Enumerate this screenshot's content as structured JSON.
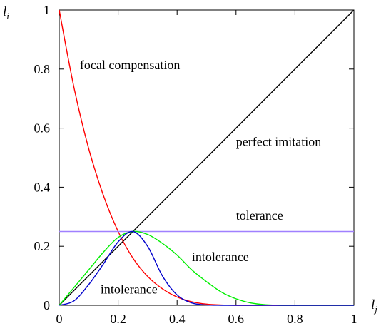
{
  "chart_data": {
    "type": "line",
    "xlabel": "l_j",
    "ylabel": "l_i",
    "xlim": [
      0,
      1
    ],
    "ylim": [
      0,
      1
    ],
    "x_ticks": [
      "0",
      "0.2",
      "0.4",
      "0.6",
      "0.8",
      "1"
    ],
    "y_ticks": [
      "0",
      "0.2",
      "0.4",
      "0.6",
      "0.8",
      "1"
    ],
    "grid": false,
    "series": [
      {
        "name": "perfect imitation",
        "color": "#000000",
        "x": [
          0,
          1
        ],
        "y": [
          0,
          1
        ]
      },
      {
        "name": "focal compensation",
        "color": "#ff0000",
        "x": [
          0,
          0.05,
          0.1,
          0.15,
          0.2,
          0.25,
          0.3,
          0.35,
          0.4,
          0.45,
          0.5,
          0.55,
          0.6,
          0.65,
          0.7,
          0.75,
          0.8,
          0.85,
          0.9,
          0.95,
          1
        ],
        "y": [
          1,
          0.738,
          0.531,
          0.372,
          0.25,
          0.16,
          0.098,
          0.056,
          0.028,
          0.012,
          0.004,
          0.001,
          0,
          0,
          0,
          0,
          0,
          0,
          0,
          0,
          0
        ]
      },
      {
        "name": "tolerance",
        "color": "#a080ff",
        "x": [
          0,
          1
        ],
        "y": [
          0.25,
          0.25
        ]
      },
      {
        "name": "intolerance",
        "color": "#00ee00",
        "x": [
          0,
          0.05,
          0.1,
          0.15,
          0.2,
          0.25,
          0.3,
          0.35,
          0.4,
          0.45,
          0.5,
          0.55,
          0.6,
          0.65,
          0.7,
          0.75,
          0.8,
          0.85,
          0.9,
          0.95,
          1
        ],
        "y": [
          0,
          0.06,
          0.12,
          0.18,
          0.23,
          0.25,
          0.24,
          0.21,
          0.17,
          0.12,
          0.08,
          0.045,
          0.022,
          0.008,
          0.002,
          0,
          0,
          0,
          0,
          0,
          0
        ]
      },
      {
        "name": "intolerance",
        "color": "#0000cc",
        "x": [
          0,
          0.05,
          0.1,
          0.15,
          0.2,
          0.25,
          0.3,
          0.35,
          0.4,
          0.45,
          0.5,
          0.55,
          0.6,
          0.65,
          0.7,
          0.75,
          0.8,
          0.85,
          0.9,
          0.95,
          1
        ],
        "y": [
          0,
          0.015,
          0.07,
          0.14,
          0.215,
          0.25,
          0.2,
          0.1,
          0.035,
          0.008,
          0.001,
          0,
          0,
          0,
          0,
          0,
          0,
          0,
          0,
          0,
          0
        ]
      }
    ],
    "annotations": [
      {
        "text": "focal compensation",
        "x": 0.07,
        "y": 0.8
      },
      {
        "text": "perfect imitation",
        "x": 0.6,
        "y": 0.54
      },
      {
        "text": "tolerance",
        "x": 0.6,
        "y": 0.29
      },
      {
        "text": "intolerance",
        "x": 0.45,
        "y": 0.15
      },
      {
        "text": "intolerance",
        "x": 0.14,
        "y": 0.04
      }
    ]
  }
}
